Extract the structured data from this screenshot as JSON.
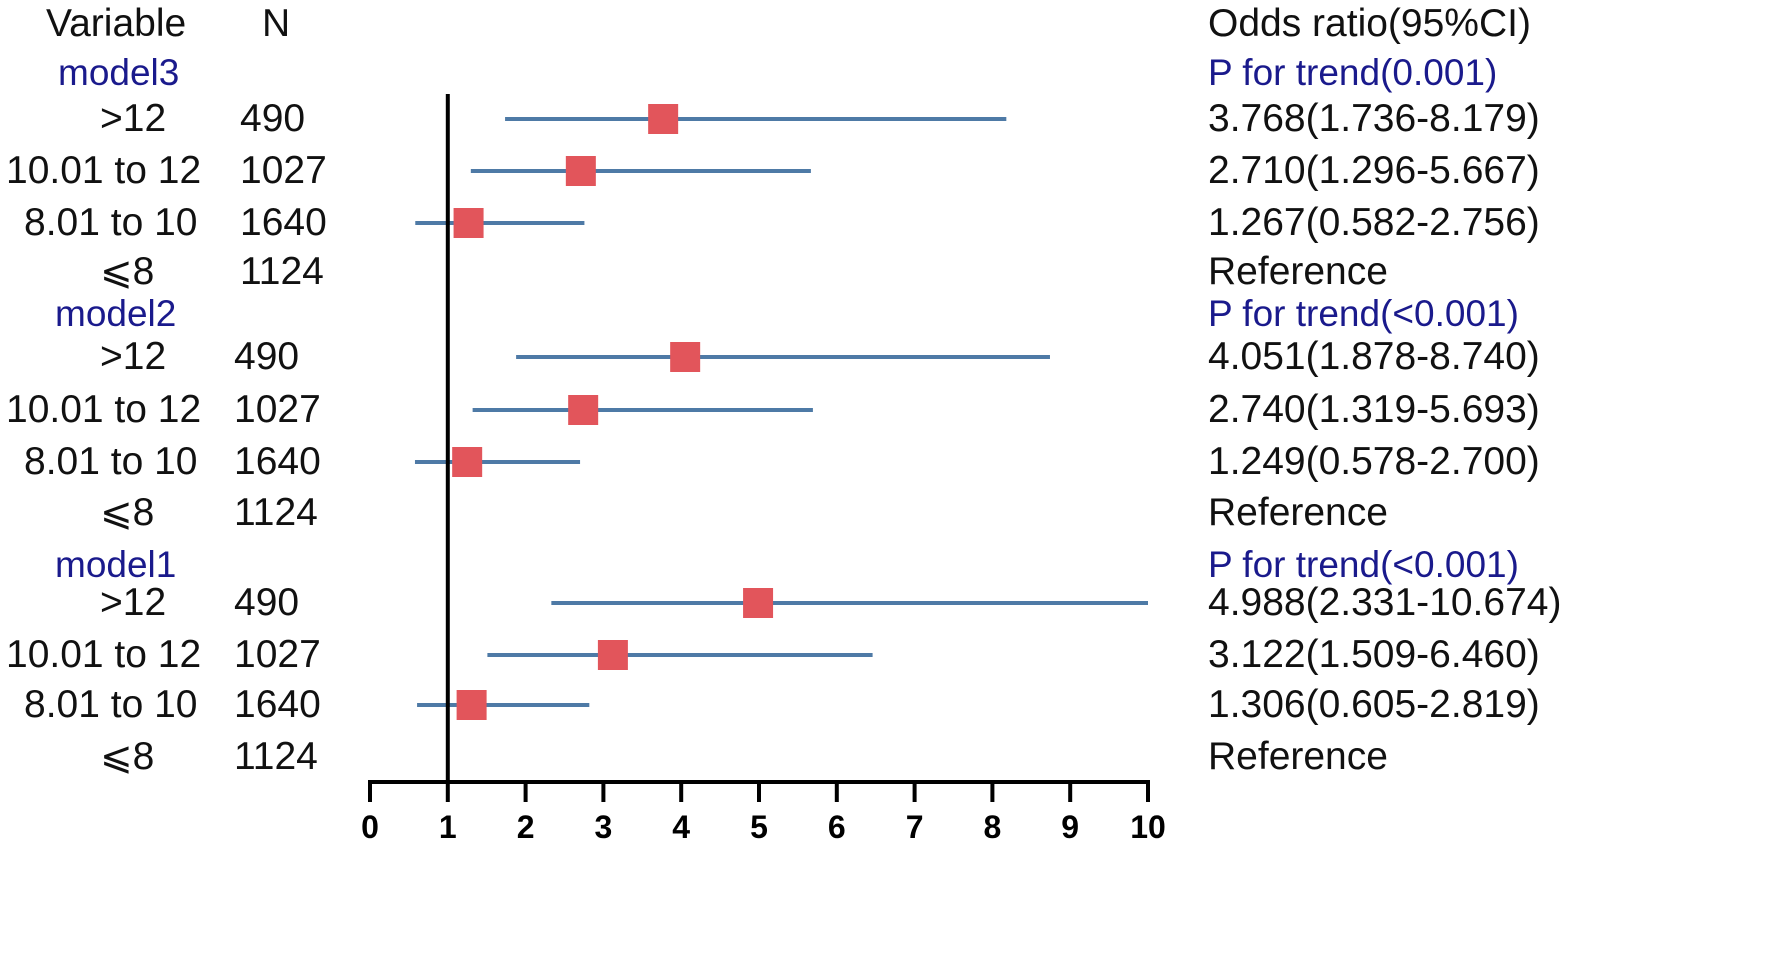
{
  "header": {
    "variable": "Variable",
    "n": "N",
    "or": "Odds ratio(95%CI)"
  },
  "colors": {
    "marker": "#e2555b",
    "ci_line": "#4e7aa6",
    "model_text": "#1a1a8c",
    "text": "#111111"
  },
  "chart_data": {
    "type": "forest",
    "x": {
      "min": 0,
      "max": 10,
      "ticks": [
        "0",
        "1",
        "2",
        "3",
        "4",
        "5",
        "6",
        "7",
        "8",
        "9",
        "10"
      ],
      "reference_line": 1
    },
    "groups": [
      {
        "model": "model3",
        "trend": "P for trend(0.001)",
        "rows": [
          {
            "variable": ">12",
            "n": "490",
            "or": 3.768,
            "lo": 1.736,
            "hi": 8.179,
            "text": "3.768(1.736-8.179)"
          },
          {
            "variable": "10.01 to 12",
            "n": "1027",
            "or": 2.71,
            "lo": 1.296,
            "hi": 5.667,
            "text": "2.710(1.296-5.667)"
          },
          {
            "variable": "8.01 to 10",
            "n": "1640",
            "or": 1.267,
            "lo": 0.582,
            "hi": 2.756,
            "text": "1.267(0.582-2.756)"
          },
          {
            "variable": "⩽8",
            "n": "1124",
            "or": null,
            "lo": null,
            "hi": null,
            "text": "Reference"
          }
        ]
      },
      {
        "model": "model2",
        "trend": "P for trend(<0.001)",
        "rows": [
          {
            "variable": ">12",
            "n": "490",
            "or": 4.051,
            "lo": 1.878,
            "hi": 8.74,
            "text": "4.051(1.878-8.740)"
          },
          {
            "variable": "10.01 to 12",
            "n": "1027",
            "or": 2.74,
            "lo": 1.319,
            "hi": 5.693,
            "text": "2.740(1.319-5.693)"
          },
          {
            "variable": "8.01 to 10",
            "n": "1640",
            "or": 1.249,
            "lo": 0.578,
            "hi": 2.7,
            "text": "1.249(0.578-2.700)"
          },
          {
            "variable": "⩽8",
            "n": "1124",
            "or": null,
            "lo": null,
            "hi": null,
            "text": "Reference"
          }
        ]
      },
      {
        "model": "model1",
        "trend": "P for trend(<0.001)",
        "rows": [
          {
            "variable": ">12",
            "n": "490",
            "or": 4.988,
            "lo": 2.331,
            "hi": 10.674,
            "text": "4.988(2.331-10.674)"
          },
          {
            "variable": "10.01 to 12",
            "n": "1027",
            "or": 3.122,
            "lo": 1.509,
            "hi": 6.46,
            "text": "3.122(1.509-6.460)"
          },
          {
            "variable": "8.01 to 10",
            "n": "1640",
            "or": 1.306,
            "lo": 0.605,
            "hi": 2.819,
            "text": "1.306(0.605-2.819)"
          },
          {
            "variable": "⩽8",
            "n": "1124",
            "or": null,
            "lo": null,
            "hi": null,
            "text": "Reference"
          }
        ]
      }
    ]
  }
}
